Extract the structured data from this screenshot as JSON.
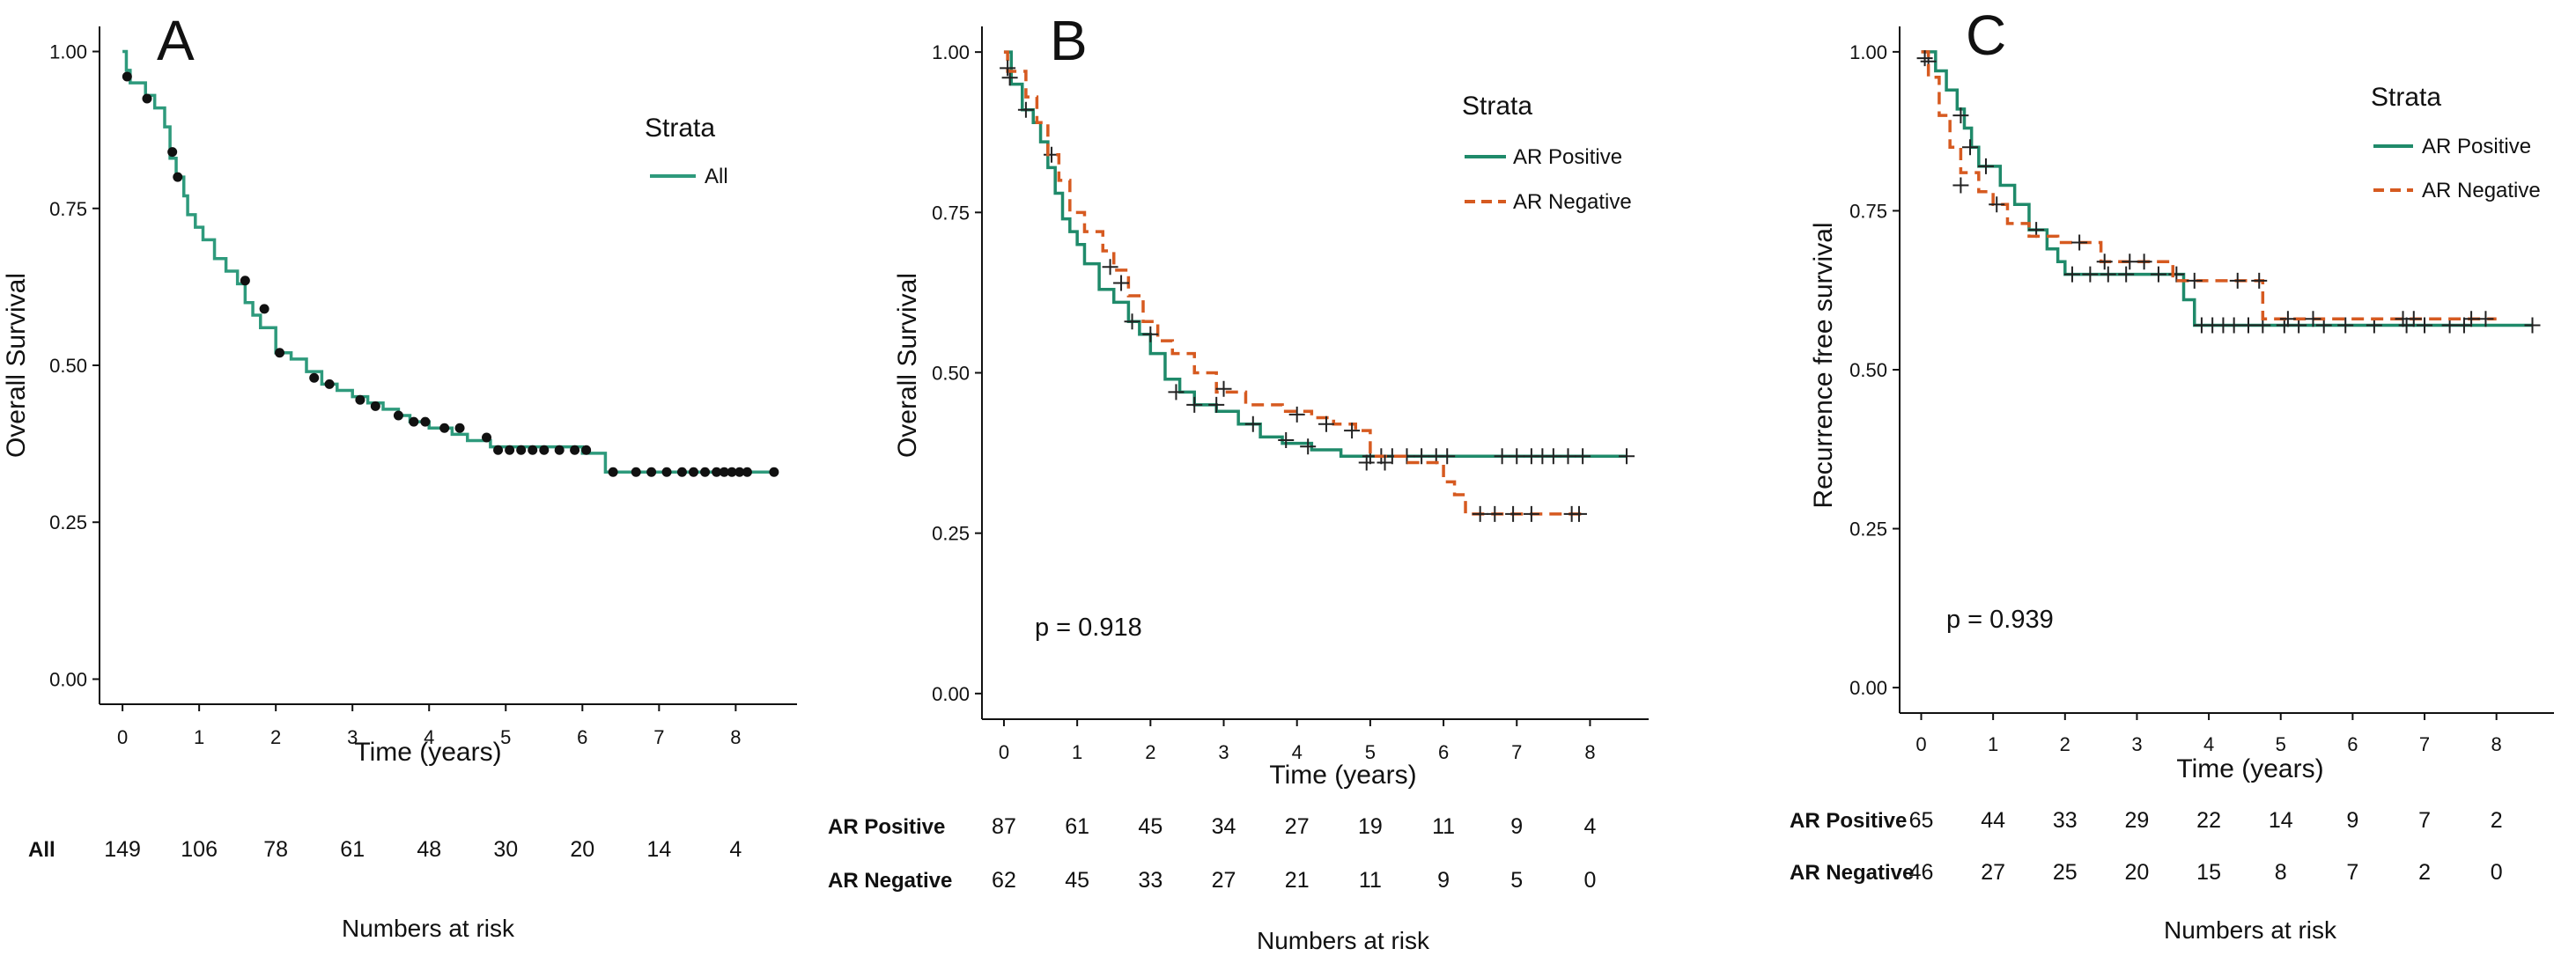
{
  "chart_data": [
    {
      "panel": "A",
      "type": "line",
      "step": true,
      "xlabel": "Time (years)",
      "ylabel": "Overall Survival",
      "xticks": [
        0,
        1,
        2,
        3,
        4,
        5,
        6,
        7,
        8
      ],
      "yticks": [
        "0.00",
        "0.25",
        "0.50",
        "0.75",
        "1.00"
      ],
      "xlim": [
        -0.3,
        8.8
      ],
      "ylim": [
        -0.04,
        1.04
      ],
      "legend_title": "Strata",
      "series": [
        {
          "name": "All",
          "color": "#2e9a7c",
          "dash": false,
          "censor_style": "dot",
          "x": [
            0,
            0.05,
            0.1,
            0.3,
            0.42,
            0.55,
            0.62,
            0.7,
            0.8,
            0.85,
            0.95,
            1.05,
            1.2,
            1.35,
            1.5,
            1.6,
            1.7,
            1.8,
            2.0,
            2.2,
            2.4,
            2.6,
            2.8,
            3.0,
            3.2,
            3.4,
            3.6,
            3.75,
            4.0,
            4.3,
            4.5,
            4.8,
            5.2,
            5.6,
            6.0,
            6.3,
            6.5,
            8.5
          ],
          "y": [
            1.0,
            0.97,
            0.95,
            0.93,
            0.91,
            0.88,
            0.83,
            0.8,
            0.77,
            0.74,
            0.72,
            0.7,
            0.67,
            0.65,
            0.63,
            0.6,
            0.58,
            0.56,
            0.52,
            0.51,
            0.49,
            0.47,
            0.46,
            0.45,
            0.44,
            0.43,
            0.42,
            0.41,
            0.4,
            0.39,
            0.38,
            0.37,
            0.37,
            0.37,
            0.36,
            0.33,
            0.33,
            0.33
          ],
          "censor_x": [
            0.06,
            0.32,
            0.65,
            0.72,
            1.6,
            1.85,
            2.05,
            2.5,
            2.7,
            3.1,
            3.3,
            3.6,
            3.8,
            3.95,
            4.2,
            4.4,
            4.75,
            4.9,
            5.05,
            5.2,
            5.35,
            5.5,
            5.7,
            5.9,
            6.05,
            6.4,
            6.7,
            6.9,
            7.1,
            7.3,
            7.45,
            7.6,
            7.75,
            7.85,
            7.95,
            8.05,
            8.15,
            8.5
          ],
          "censor_y": [
            0.96,
            0.925,
            0.84,
            0.8,
            0.635,
            0.59,
            0.52,
            0.48,
            0.47,
            0.445,
            0.435,
            0.42,
            0.41,
            0.41,
            0.4,
            0.4,
            0.385,
            0.365,
            0.365,
            0.365,
            0.365,
            0.365,
            0.365,
            0.365,
            0.365,
            0.33,
            0.33,
            0.33,
            0.33,
            0.33,
            0.33,
            0.33,
            0.33,
            0.33,
            0.33,
            0.33,
            0.33,
            0.33
          ]
        }
      ],
      "pvalue": "",
      "risk_table": {
        "title": "Numbers at risk",
        "rows": [
          {
            "label": "All",
            "values": [
              "149",
              "106",
              "78",
              "61",
              "48",
              "30",
              "20",
              "14",
              "4"
            ]
          }
        ]
      }
    },
    {
      "panel": "B",
      "type": "line",
      "step": true,
      "xlabel": "Time (years)",
      "ylabel": "Overall Survival",
      "xticks": [
        0,
        1,
        2,
        3,
        4,
        5,
        6,
        7,
        8
      ],
      "yticks": [
        "0.00",
        "0.25",
        "0.50",
        "0.75",
        "1.00"
      ],
      "xlim": [
        -0.3,
        8.8
      ],
      "ylim": [
        -0.04,
        1.04
      ],
      "legend_title": "Strata",
      "series": [
        {
          "name": "AR Positive",
          "color": "#1f8a6a",
          "dash": false,
          "censor_style": "plus",
          "x": [
            0,
            0.1,
            0.25,
            0.4,
            0.5,
            0.6,
            0.7,
            0.8,
            0.9,
            1.0,
            1.1,
            1.3,
            1.5,
            1.7,
            1.85,
            2.0,
            2.2,
            2.4,
            2.6,
            2.9,
            3.2,
            3.5,
            3.8,
            4.2,
            4.6,
            5.0,
            8.5
          ],
          "y": [
            1.0,
            0.95,
            0.91,
            0.89,
            0.86,
            0.82,
            0.78,
            0.74,
            0.72,
            0.7,
            0.67,
            0.63,
            0.61,
            0.58,
            0.56,
            0.53,
            0.49,
            0.47,
            0.45,
            0.44,
            0.42,
            0.4,
            0.39,
            0.38,
            0.37,
            0.37,
            0.37
          ],
          "censor_x": [
            0.08,
            0.3,
            0.65,
            1.75,
            2.35,
            2.6,
            2.9,
            3.4,
            3.85,
            4.15,
            5.0,
            5.15,
            5.3,
            5.5,
            5.7,
            5.9,
            6.05,
            6.8,
            7.0,
            7.2,
            7.35,
            7.5,
            7.7,
            7.9,
            8.5
          ],
          "censor_y": [
            0.96,
            0.91,
            0.84,
            0.58,
            0.47,
            0.45,
            0.45,
            0.42,
            0.395,
            0.385,
            0.37,
            0.37,
            0.37,
            0.37,
            0.37,
            0.37,
            0.37,
            0.37,
            0.37,
            0.37,
            0.37,
            0.37,
            0.37,
            0.37,
            0.37
          ]
        },
        {
          "name": "AR Negative",
          "color": "#d65a20",
          "dash": true,
          "censor_style": "plus",
          "x": [
            0,
            0.05,
            0.3,
            0.45,
            0.6,
            0.75,
            0.9,
            1.1,
            1.35,
            1.5,
            1.7,
            1.9,
            2.1,
            2.3,
            2.6,
            2.9,
            3.3,
            3.8,
            4.2,
            4.5,
            4.8,
            5.0,
            5.5,
            6.0,
            6.15,
            6.3,
            7.9
          ],
          "y": [
            1.0,
            0.97,
            0.93,
            0.89,
            0.84,
            0.8,
            0.75,
            0.72,
            0.69,
            0.66,
            0.62,
            0.58,
            0.55,
            0.53,
            0.5,
            0.47,
            0.45,
            0.44,
            0.43,
            0.42,
            0.41,
            0.37,
            0.36,
            0.33,
            0.31,
            0.28,
            0.28
          ],
          "censor_x": [
            0.05,
            1.45,
            1.6,
            2.0,
            3.0,
            4.0,
            4.4,
            4.75,
            4.95,
            5.2,
            6.5,
            6.7,
            6.95,
            7.2,
            7.75,
            7.85
          ],
          "censor_y": [
            0.975,
            0.665,
            0.64,
            0.56,
            0.475,
            0.435,
            0.42,
            0.41,
            0.36,
            0.36,
            0.28,
            0.28,
            0.28,
            0.28,
            0.28,
            0.28
          ]
        }
      ],
      "pvalue": "p = 0.918",
      "risk_table": {
        "title": "Numbers at risk",
        "rows": [
          {
            "label": "AR Positive",
            "values": [
              "87",
              "61",
              "45",
              "34",
              "27",
              "19",
              "11",
              "9",
              "4"
            ]
          },
          {
            "label": "AR Negative",
            "values": [
              "62",
              "45",
              "33",
              "27",
              "21",
              "11",
              "9",
              "5",
              "0"
            ]
          }
        ]
      }
    },
    {
      "panel": "C",
      "type": "line",
      "step": true,
      "xlabel": "Time (years)",
      "ylabel": "Recurrence free survival",
      "xticks": [
        0,
        1,
        2,
        3,
        4,
        5,
        6,
        7,
        8
      ],
      "yticks": [
        "0.00",
        "0.25",
        "0.50",
        "0.75",
        "1.00"
      ],
      "xlim": [
        -0.3,
        8.8
      ],
      "ylim": [
        -0.04,
        1.04
      ],
      "legend_title": "Strata",
      "series": [
        {
          "name": "AR Positive",
          "color": "#1f8a6a",
          "dash": false,
          "censor_style": "plus",
          "x": [
            0,
            0.2,
            0.35,
            0.5,
            0.6,
            0.7,
            0.8,
            1.1,
            1.3,
            1.5,
            1.75,
            1.9,
            2.0,
            3.65,
            3.8,
            8.5
          ],
          "y": [
            1.0,
            0.97,
            0.94,
            0.91,
            0.88,
            0.85,
            0.82,
            0.79,
            0.76,
            0.72,
            0.69,
            0.67,
            0.65,
            0.61,
            0.57,
            0.57
          ],
          "censor_x": [
            0.1,
            0.55,
            0.68,
            0.9,
            1.6,
            2.1,
            2.35,
            2.6,
            2.85,
            3.3,
            3.55,
            3.9,
            4.05,
            4.2,
            4.35,
            4.55,
            4.75,
            5.05,
            5.25,
            5.6,
            5.9,
            6.3,
            6.75,
            7.0,
            7.35,
            7.55,
            8.5
          ],
          "censor_y": [
            0.985,
            0.9,
            0.85,
            0.82,
            0.72,
            0.65,
            0.65,
            0.65,
            0.65,
            0.65,
            0.65,
            0.57,
            0.57,
            0.57,
            0.57,
            0.57,
            0.57,
            0.57,
            0.57,
            0.57,
            0.57,
            0.57,
            0.57,
            0.57,
            0.57,
            0.57,
            0.57
          ]
        },
        {
          "name": "AR Negative",
          "color": "#d65a20",
          "dash": true,
          "censor_style": "plus",
          "x": [
            0,
            0.1,
            0.25,
            0.4,
            0.55,
            0.8,
            1.0,
            1.2,
            1.5,
            1.9,
            2.2,
            2.5,
            3.0,
            3.5,
            4.0,
            4.6,
            4.75,
            8.0
          ],
          "y": [
            1.0,
            0.96,
            0.9,
            0.85,
            0.81,
            0.78,
            0.76,
            0.73,
            0.71,
            0.7,
            0.7,
            0.67,
            0.67,
            0.64,
            0.64,
            0.64,
            0.58,
            0.58
          ],
          "censor_x": [
            0.05,
            0.55,
            1.05,
            2.2,
            2.55,
            2.9,
            3.1,
            3.8,
            4.4,
            4.7,
            5.1,
            5.45,
            6.7,
            6.85,
            7.65,
            7.85
          ],
          "censor_y": [
            0.99,
            0.79,
            0.76,
            0.7,
            0.67,
            0.67,
            0.67,
            0.64,
            0.64,
            0.64,
            0.58,
            0.58,
            0.58,
            0.58,
            0.58,
            0.58
          ]
        }
      ],
      "pvalue": "p = 0.939",
      "risk_table": {
        "title": "Numbers at risk",
        "rows": [
          {
            "label": "AR Positive",
            "values": [
              "65",
              "44",
              "33",
              "29",
              "22",
              "14",
              "9",
              "7",
              "2"
            ]
          },
          {
            "label": "AR Negative",
            "values": [
              "46",
              "27",
              "25",
              "20",
              "15",
              "8",
              "7",
              "2",
              "0"
            ]
          }
        ]
      }
    }
  ]
}
